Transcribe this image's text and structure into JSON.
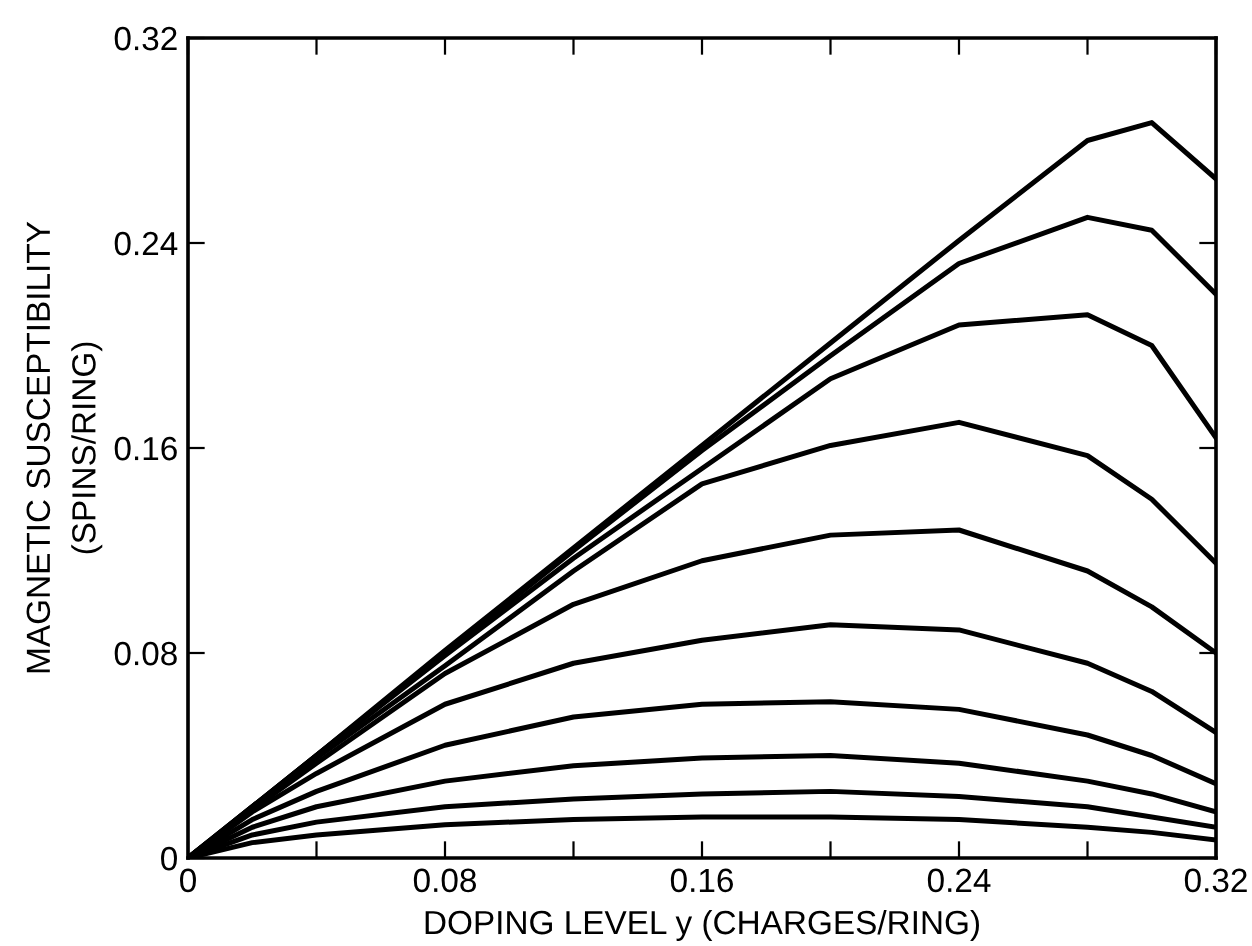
{
  "chart_data": {
    "type": "line",
    "xlabel": "DOPING LEVEL y (CHARGES/RING)",
    "ylabel": "MAGNETIC SUSCEPTIBILITY\n(SPINS/RING)",
    "x": [
      0,
      0.02,
      0.04,
      0.08,
      0.12,
      0.16,
      0.2,
      0.24,
      0.28,
      0.3,
      0.32
    ],
    "series": [
      {
        "color": "#000000",
        "values": [
          0,
          0.02,
          0.04,
          0.081,
          0.121,
          0.161,
          0.201,
          0.241,
          0.28,
          0.287,
          0.265
        ]
      },
      {
        "color": "#000000",
        "values": [
          0,
          0.02,
          0.04,
          0.08,
          0.12,
          0.159,
          0.196,
          0.232,
          0.25,
          0.245,
          0.22
        ]
      },
      {
        "color": "#000000",
        "values": [
          0,
          0.02,
          0.04,
          0.079,
          0.117,
          0.152,
          0.187,
          0.208,
          0.212,
          0.2,
          0.164
        ]
      },
      {
        "color": "#000000",
        "values": [
          0,
          0.019,
          0.039,
          0.075,
          0.112,
          0.146,
          0.161,
          0.17,
          0.157,
          0.14,
          0.115
        ]
      },
      {
        "color": "#000000",
        "values": [
          0,
          0.019,
          0.037,
          0.072,
          0.099,
          0.116,
          0.126,
          0.128,
          0.112,
          0.098,
          0.08
        ]
      },
      {
        "color": "#000000",
        "values": [
          0,
          0.018,
          0.033,
          0.06,
          0.076,
          0.085,
          0.091,
          0.089,
          0.076,
          0.065,
          0.049
        ]
      },
      {
        "color": "#000000",
        "values": [
          0,
          0.015,
          0.026,
          0.044,
          0.055,
          0.06,
          0.061,
          0.058,
          0.048,
          0.04,
          0.029
        ]
      },
      {
        "color": "#000000",
        "values": [
          0,
          0.012,
          0.02,
          0.03,
          0.036,
          0.039,
          0.04,
          0.037,
          0.03,
          0.025,
          0.018
        ]
      },
      {
        "color": "#000000",
        "values": [
          0,
          0.009,
          0.014,
          0.02,
          0.023,
          0.025,
          0.026,
          0.024,
          0.02,
          0.016,
          0.012
        ]
      },
      {
        "color": "#000000",
        "values": [
          0,
          0.006,
          0.009,
          0.013,
          0.015,
          0.016,
          0.016,
          0.015,
          0.012,
          0.01,
          0.007
        ]
      }
    ],
    "xlim": [
      0,
      0.32
    ],
    "ylim": [
      0,
      0.32
    ],
    "xticks": [
      0,
      {
        "value": 0.04,
        "label": null
      },
      0.08,
      {
        "value": 0.12,
        "label": null
      },
      0.16,
      {
        "value": 0.2,
        "label": null
      },
      0.24,
      {
        "value": 0.28,
        "label": null
      },
      0.32
    ],
    "yticks": [
      0,
      0.08,
      0.16,
      0.24,
      0.32
    ],
    "grid": false,
    "legend": false,
    "marker": "none",
    "line_style": "solid"
  }
}
